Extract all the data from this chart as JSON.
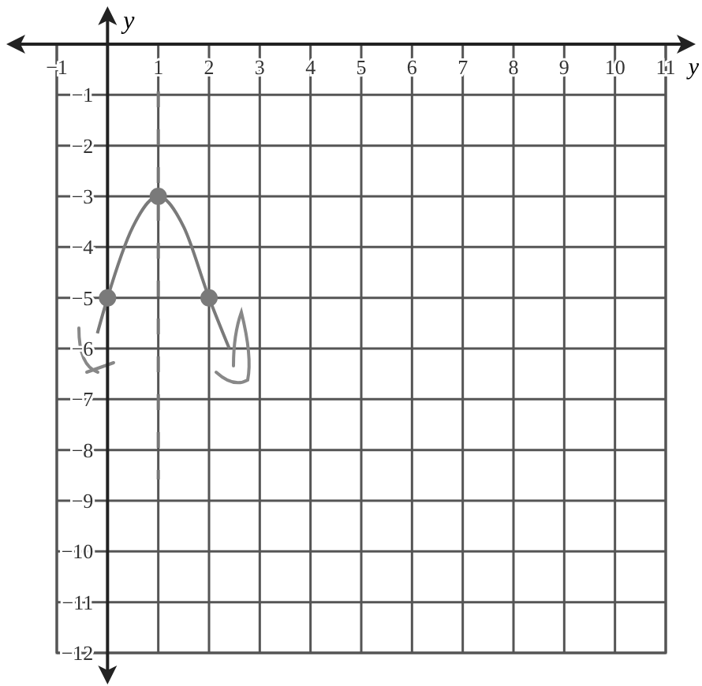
{
  "chart_data": {
    "type": "line",
    "xlabel": "y",
    "ylabel": "y",
    "xlim": [
      -1,
      11
    ],
    "ylim": [
      -12,
      0
    ],
    "xticks": [
      -1,
      1,
      2,
      3,
      4,
      5,
      6,
      7,
      8,
      9,
      10,
      11
    ],
    "yticks": [
      -1,
      -2,
      -3,
      -4,
      -5,
      -6,
      -7,
      -8,
      -9,
      -10,
      -11,
      -12
    ],
    "grid": true,
    "series": [
      {
        "color": "#7a7a7a",
        "marker": "none",
        "x": [
          -0.2,
          0,
          0.5,
          1,
          1.5,
          2,
          2.4
        ],
        "values": [
          -5.7,
          -5,
          -3.6,
          -3,
          -3.6,
          -5,
          -6
        ]
      },
      {
        "type": "scatter",
        "color": "#7a7a7a",
        "marker": "circle",
        "x": [
          0,
          1,
          2
        ],
        "values": [
          -5,
          -3,
          -5
        ]
      }
    ],
    "ref_lines": [
      {
        "axis": "x",
        "value": 1,
        "color": "#777777",
        "line_style": "dashed"
      }
    ]
  }
}
